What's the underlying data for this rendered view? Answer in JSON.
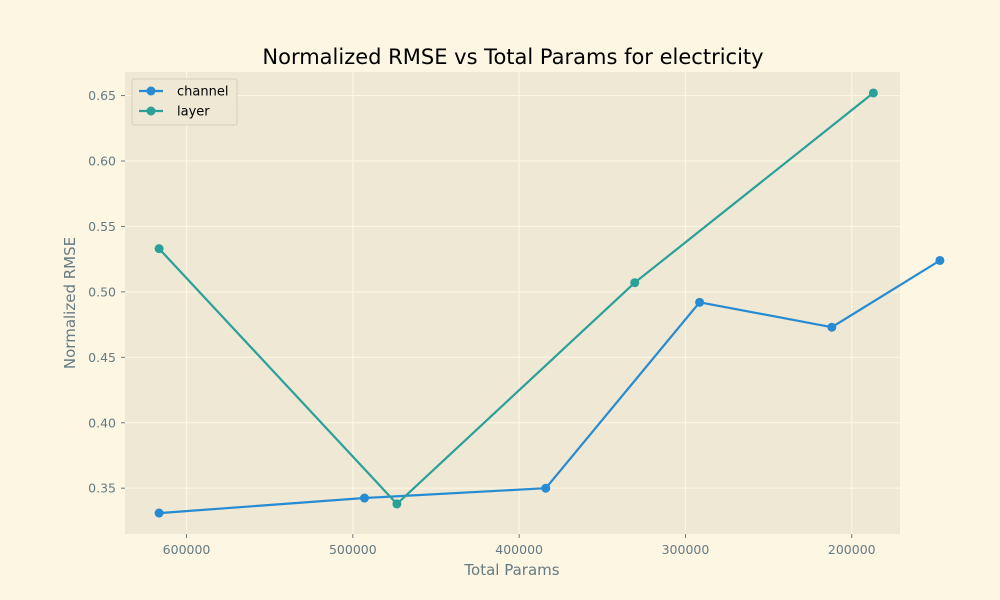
{
  "chart_data": {
    "type": "line",
    "title": "Normalized RMSE vs Total Params for electricity",
    "xlabel": "Total Params",
    "ylabel": "Normalized RMSE",
    "x_inverted": true,
    "xlim": [
      637000,
      171000
    ],
    "ylim": [
      0.315,
      0.668
    ],
    "xticks": [
      600000,
      500000,
      400000,
      300000,
      200000
    ],
    "xtick_labels": [
      "600000",
      "500000",
      "400000",
      "300000",
      "200000"
    ],
    "yticks": [
      0.35,
      0.4,
      0.45,
      0.5,
      0.55,
      0.6,
      0.65
    ],
    "ytick_labels": [
      "0.35",
      "0.40",
      "0.45",
      "0.50",
      "0.55",
      "0.60",
      "0.65"
    ],
    "grid": true,
    "legend": {
      "position": "top-left",
      "entries": [
        "channel",
        "layer"
      ]
    },
    "series": [
      {
        "name": "channel",
        "color": "#268bd2",
        "x": [
          616500,
          493000,
          384000,
          291500,
          212000,
          147000
        ],
        "y": [
          0.331,
          0.3425,
          0.35,
          0.492,
          0.473,
          0.524
        ]
      },
      {
        "name": "layer",
        "color": "#2aa198",
        "x": [
          616500,
          473500,
          330500,
          187000
        ],
        "y": [
          0.533,
          0.338,
          0.507,
          0.652
        ]
      }
    ]
  },
  "colors": {
    "figure_background": "#fdf6e3",
    "plot_background": "#eee8d5",
    "grid": "#fdf6e3",
    "axis_text": "#657b83",
    "title_text": "#000000"
  }
}
